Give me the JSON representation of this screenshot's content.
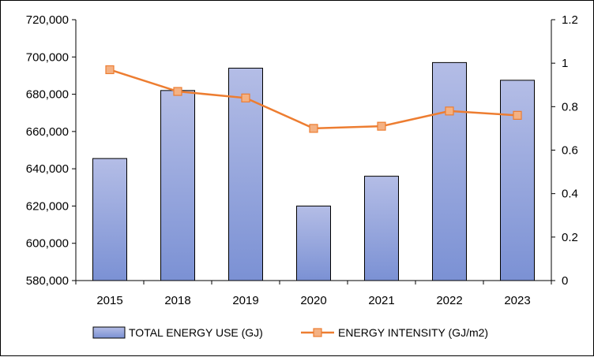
{
  "chart_data": {
    "type": "bar+line",
    "categories": [
      "2015",
      "2018",
      "2019",
      "2020",
      "2021",
      "2022",
      "2023"
    ],
    "series": [
      {
        "name": "TOTAL ENERGY USE (GJ)",
        "type": "bar",
        "axis": "left",
        "values": [
          645500,
          682000,
          694000,
          620000,
          636000,
          697000,
          687500
        ],
        "color_top": "#b4bde6",
        "color_bottom": "#7b91d4",
        "stroke": "#000000"
      },
      {
        "name": "ENERGY INTENSITY  (GJ/m2)",
        "type": "line",
        "axis": "right",
        "values": [
          0.97,
          0.87,
          0.84,
          0.7,
          0.71,
          0.78,
          0.76
        ],
        "color": "#ed7d31",
        "marker_fill": "#f4b183"
      }
    ],
    "y_left": {
      "min": 580000,
      "max": 720000,
      "ticks": [
        580000,
        600000,
        620000,
        640000,
        660000,
        680000,
        700000,
        720000
      ],
      "tick_labels": [
        "580,000",
        "600,000",
        "620,000",
        "640,000",
        "660,000",
        "680,000",
        "700,000",
        "720,000"
      ]
    },
    "y_right": {
      "min": 0,
      "max": 1.2,
      "ticks": [
        0,
        0.2,
        0.4,
        0.6,
        0.8,
        1,
        1.2
      ],
      "tick_labels": [
        "0",
        "0.2",
        "0.4",
        "0.6",
        "0.8",
        "1",
        "1.2"
      ]
    },
    "grid": false,
    "legend": "bottom"
  }
}
